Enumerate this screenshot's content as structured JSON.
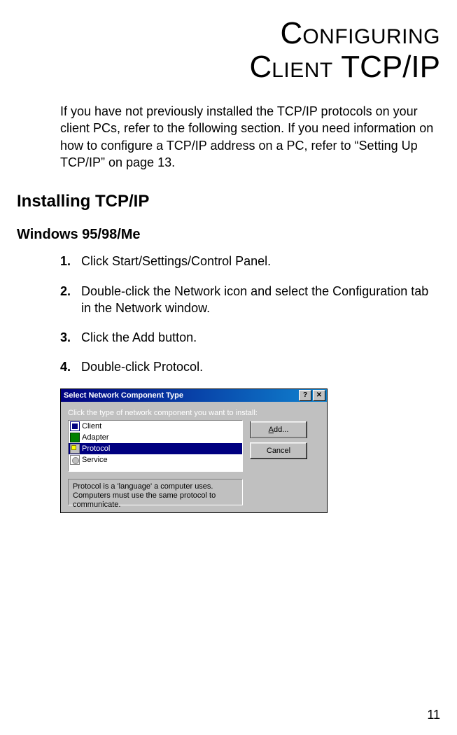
{
  "chapter_title": {
    "line1_cap": "C",
    "line1_sc": "ONFIGURING",
    "line2a_cap": "C",
    "line2a_sc": "LIENT",
    "line2b_big": " TCP/IP"
  },
  "intro_text": "If you have not previously installed the TCP/IP protocols on your client PCs, refer to the following section. If you need information on how to configure a TCP/IP address on a PC, refer to “Setting Up TCP/IP” on page 13.",
  "h2": "Installing TCP/IP",
  "h3": "Windows 95/98/Me",
  "steps": [
    "Click Start/Settings/Control Panel.",
    "Double-click the Network icon and select the Configuration tab in the Network window.",
    "Click the Add button.",
    "Double-click Protocol."
  ],
  "dialog": {
    "title": "Select Network Component Type",
    "help_glyph": "?",
    "close_glyph": "✕",
    "prompt": "Click the type of network component you want to install:",
    "items": [
      {
        "label": "Client",
        "icon": "client"
      },
      {
        "label": "Adapter",
        "icon": "adapter"
      },
      {
        "label": "Protocol",
        "icon": "protocol",
        "selected": true
      },
      {
        "label": "Service",
        "icon": "service"
      }
    ],
    "add_label_pre": "",
    "add_underline": "A",
    "add_label_post": "dd...",
    "cancel_label": "Cancel",
    "description": "Protocol is a 'language' a computer uses. Computers must use the same protocol to communicate.",
    "colors": {
      "titlebar_start": "#000080",
      "titlebar_end": "#1084d0",
      "face": "#c0c0c0",
      "highlight": "#000080"
    }
  },
  "page_number": "11"
}
